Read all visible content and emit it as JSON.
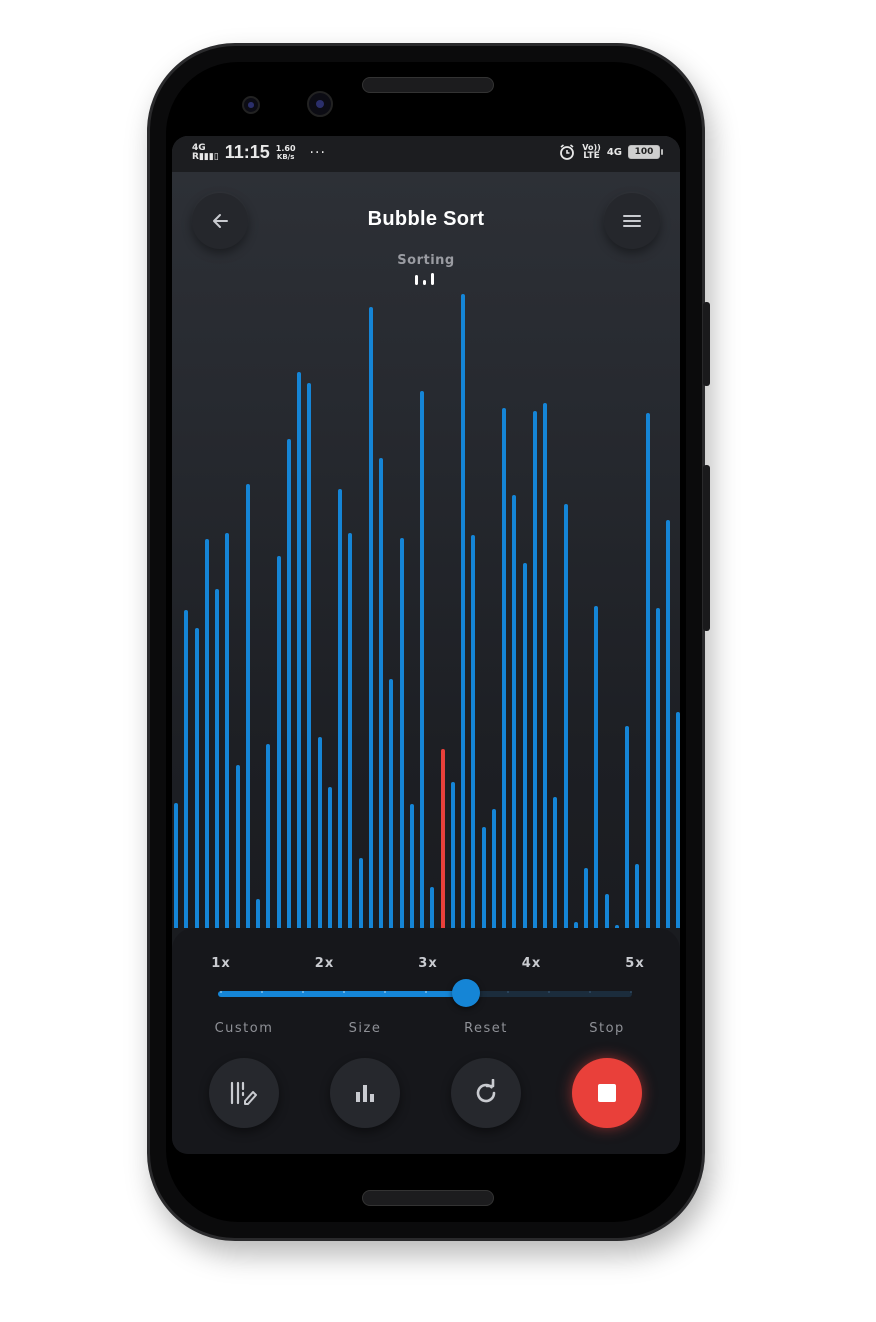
{
  "status_bar": {
    "signal_label": "4G",
    "signal_sub": "R",
    "time": "11:15",
    "net_speed_value": "1.60",
    "net_speed_unit": "KB/s",
    "more_dots": "···",
    "volte_top": "Vo))",
    "volte_bottom": "LTE",
    "network": "4G",
    "battery": "100"
  },
  "header": {
    "title": "Bubble Sort",
    "status": "Sorting",
    "back_icon": "arrow-left-icon",
    "menu_icon": "hamburger-menu-icon"
  },
  "visualizer": {
    "bar_color": "#1585d6",
    "active_color": "#e9403a",
    "active_index": 26,
    "bars": [
      0.197,
      0.502,
      0.473,
      0.614,
      0.535,
      0.623,
      0.257,
      0.701,
      0.045,
      0.29,
      0.586,
      0.771,
      0.877,
      0.86,
      0.301,
      0.223,
      0.692,
      0.623,
      0.11,
      0.98,
      0.742,
      0.392,
      0.615,
      0.195,
      0.847,
      0.065,
      0.283,
      0.23,
      1.0,
      0.62,
      0.16,
      0.187,
      0.82,
      0.683,
      0.575,
      0.815,
      0.828,
      0.206,
      0.668,
      0.01,
      0.094,
      0.508,
      0.053,
      0.005,
      0.319,
      0.101,
      0.813,
      0.505,
      0.644,
      0.34
    ]
  },
  "controls": {
    "speed_labels": [
      "1x",
      "2x",
      "3x",
      "4x",
      "5x"
    ],
    "speed_value": 0.6,
    "speed_ticks": 11,
    "actions": [
      {
        "label": "Custom",
        "icon": "custom-edit-icon"
      },
      {
        "label": "Size",
        "icon": "bar-chart-icon"
      },
      {
        "label": "Reset",
        "icon": "refresh-icon"
      },
      {
        "label": "Stop",
        "icon": "stop-icon"
      }
    ],
    "accent": "#1585d6",
    "stop_color": "#e9403a"
  }
}
